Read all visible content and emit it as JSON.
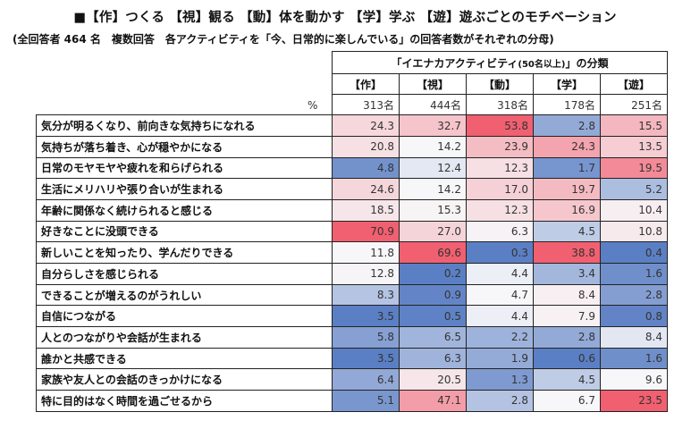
{
  "header": {
    "title": "■【作】つくる 【視】観る 【動】体を動かす 【学】学ぶ 【遊】遊ぶごとのモチベーション",
    "subtitle": "(全回答者 464 名　複数回答　各アクティビティを「今、日常的に楽しんでいる」の回答者数がそれぞれの分母)",
    "unit": "%"
  },
  "chart_data": {
    "type": "table",
    "group_header": "「イエナカアクティビティ",
    "group_header_note": "(50名以上)",
    "group_header_suffix": "」の分類",
    "columns": [
      {
        "key": "作",
        "label": "【作】",
        "n": "313名"
      },
      {
        "key": "視",
        "label": "【視】",
        "n": "444名"
      },
      {
        "key": "動",
        "label": "【動】",
        "n": "318名"
      },
      {
        "key": "学",
        "label": "【学】",
        "n": "178名"
      },
      {
        "key": "遊",
        "label": "【遊】",
        "n": "251名"
      }
    ],
    "rows": [
      {
        "label": "気分が明るくなり、前向きな気持ちになれる",
        "values": [
          24.3,
          32.7,
          53.8,
          2.8,
          15.5
        ]
      },
      {
        "label": "気持ちが落ち着き、心が穏やかになる",
        "values": [
          20.8,
          14.2,
          23.9,
          24.3,
          13.5
        ]
      },
      {
        "label": "日常のモヤモヤや疲れを和らげられる",
        "values": [
          4.8,
          12.4,
          12.3,
          1.7,
          19.5
        ]
      },
      {
        "label": "生活にメリハリや張り合いが生まれる",
        "values": [
          24.6,
          14.2,
          17.0,
          19.7,
          5.2
        ]
      },
      {
        "label": "年齢に関係なく続けられると感じる",
        "values": [
          18.5,
          15.3,
          12.3,
          16.9,
          10.4
        ]
      },
      {
        "label": "好きなことに没頭できる",
        "values": [
          70.9,
          27.0,
          6.3,
          4.5,
          10.8
        ]
      },
      {
        "label": "新しいことを知ったり、学んだりできる",
        "values": [
          11.8,
          69.6,
          0.3,
          38.8,
          0.4
        ]
      },
      {
        "label": "自分らしさを感じられる",
        "values": [
          12.8,
          0.2,
          4.4,
          3.4,
          1.6
        ]
      },
      {
        "label": "できることが増えるのがうれしい",
        "values": [
          8.3,
          0.9,
          4.7,
          8.4,
          2.8
        ]
      },
      {
        "label": "自信につながる",
        "values": [
          3.5,
          0.5,
          4.4,
          7.9,
          0.8
        ]
      },
      {
        "label": "人とのつながりや会話が生まれる",
        "values": [
          5.8,
          6.5,
          2.2,
          2.8,
          8.4
        ]
      },
      {
        "label": "誰かと共感できる",
        "values": [
          3.5,
          6.3,
          1.9,
          0.6,
          1.6
        ]
      },
      {
        "label": "家族や友人との会話のきっかけになる",
        "values": [
          6.4,
          20.5,
          1.3,
          4.5,
          9.6
        ]
      },
      {
        "label": "特に目的はなく時間を過ごせるから",
        "values": [
          5.1,
          47.1,
          2.8,
          6.7,
          23.5
        ]
      }
    ]
  },
  "colors": {
    "low": "#5b7fc4",
    "mid": "#f7f7f9",
    "high": "#f06070",
    "border": "#222222"
  }
}
